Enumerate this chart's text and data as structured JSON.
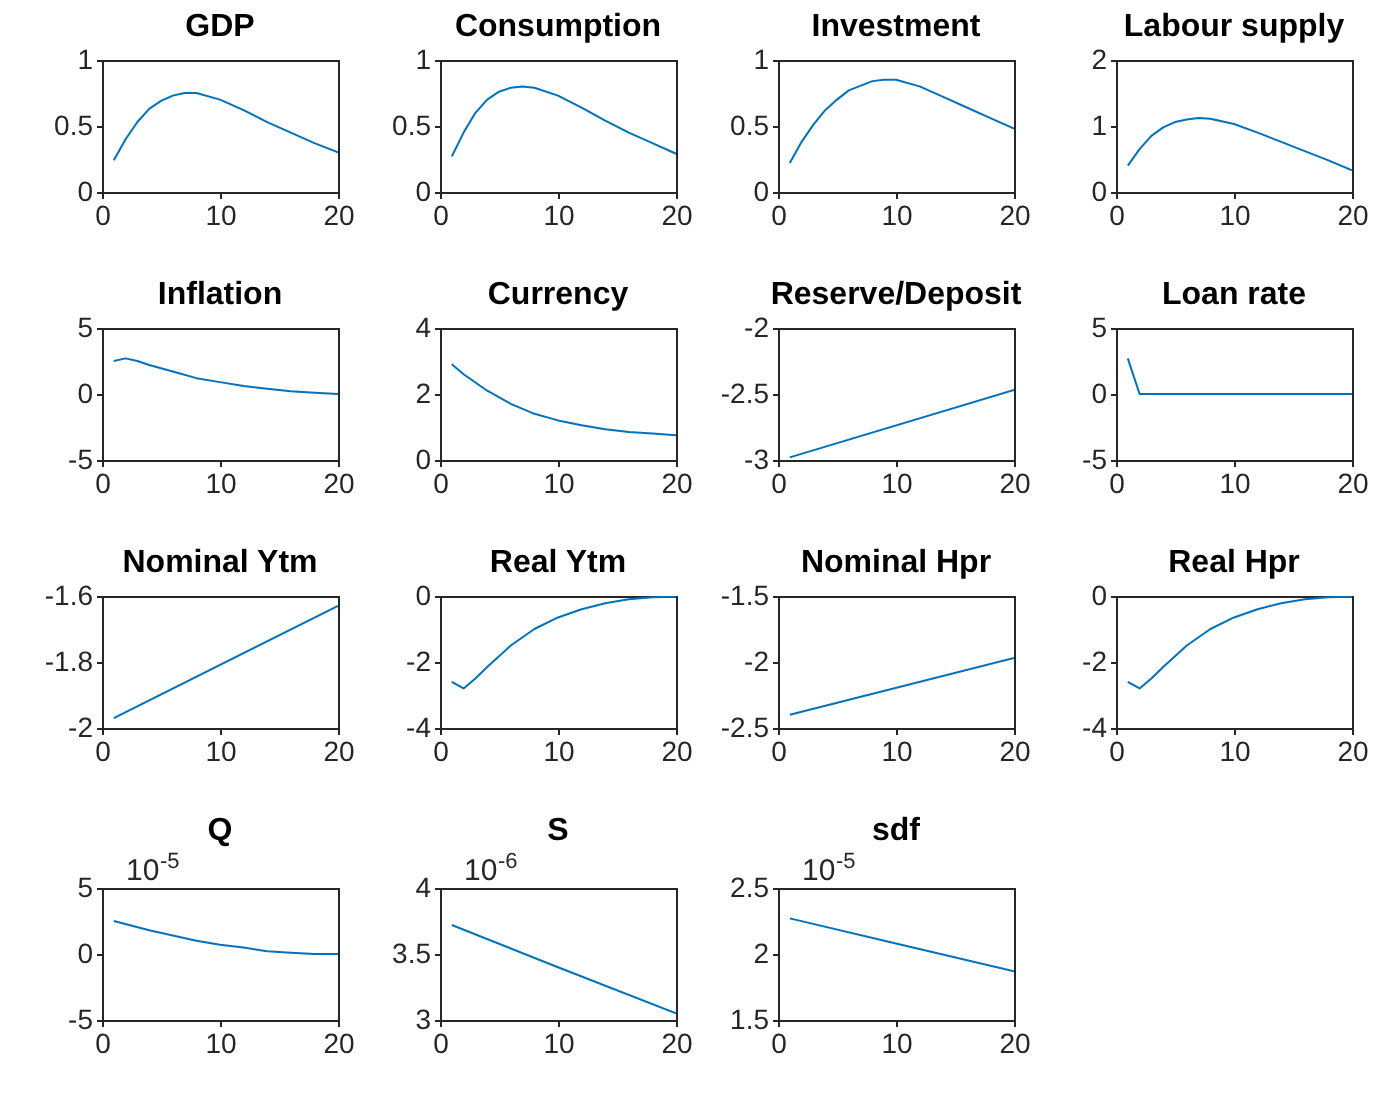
{
  "chart_data": [
    {
      "type": "line",
      "title": "GDP",
      "x": [
        1,
        2,
        3,
        4,
        5,
        6,
        7,
        8,
        10,
        12,
        14,
        16,
        18,
        20
      ],
      "values": [
        0.24,
        0.4,
        0.53,
        0.63,
        0.69,
        0.73,
        0.75,
        0.75,
        0.7,
        0.62,
        0.53,
        0.45,
        0.37,
        0.3
      ],
      "color": "#0072bd",
      "xlim": [
        0,
        20
      ],
      "xticks": [
        0,
        10,
        20
      ],
      "ylim": [
        0,
        1
      ],
      "yticks": [
        0,
        0.5,
        1
      ],
      "grid": false
    },
    {
      "type": "line",
      "title": "Consumption",
      "x": [
        1,
        2,
        3,
        4,
        5,
        6,
        7,
        8,
        10,
        12,
        14,
        16,
        18,
        20
      ],
      "values": [
        0.27,
        0.45,
        0.6,
        0.7,
        0.76,
        0.79,
        0.8,
        0.79,
        0.73,
        0.64,
        0.54,
        0.45,
        0.37,
        0.29
      ],
      "color": "#0072bd",
      "xlim": [
        0,
        20
      ],
      "xticks": [
        0,
        10,
        20
      ],
      "ylim": [
        0,
        1
      ],
      "yticks": [
        0,
        0.5,
        1
      ],
      "grid": false
    },
    {
      "type": "line",
      "title": "Investment",
      "x": [
        1,
        2,
        3,
        4,
        5,
        6,
        8,
        9,
        10,
        12,
        14,
        16,
        18,
        20
      ],
      "values": [
        0.22,
        0.38,
        0.51,
        0.62,
        0.7,
        0.77,
        0.84,
        0.85,
        0.85,
        0.8,
        0.72,
        0.64,
        0.56,
        0.48
      ],
      "color": "#0072bd",
      "xlim": [
        0,
        20
      ],
      "xticks": [
        0,
        10,
        20
      ],
      "ylim": [
        0,
        1
      ],
      "yticks": [
        0,
        0.5,
        1
      ],
      "grid": false
    },
    {
      "type": "line",
      "title": "Labour supply",
      "x": [
        1,
        2,
        3,
        4,
        5,
        6,
        7,
        8,
        10,
        12,
        14,
        16,
        18,
        20
      ],
      "values": [
        0.4,
        0.65,
        0.85,
        0.98,
        1.06,
        1.1,
        1.12,
        1.11,
        1.03,
        0.9,
        0.76,
        0.62,
        0.48,
        0.33
      ],
      "color": "#0072bd",
      "xlim": [
        0,
        20
      ],
      "xticks": [
        0,
        10,
        20
      ],
      "ylim": [
        0,
        2
      ],
      "yticks": [
        0,
        1,
        2
      ],
      "grid": false
    },
    {
      "type": "line",
      "title": "Inflation",
      "x": [
        1,
        2,
        3,
        4,
        6,
        8,
        10,
        12,
        14,
        16,
        18,
        20
      ],
      "values": [
        2.5,
        2.7,
        2.5,
        2.2,
        1.7,
        1.2,
        0.9,
        0.6,
        0.4,
        0.2,
        0.1,
        0
      ],
      "color": "#0072bd",
      "xlim": [
        0,
        20
      ],
      "xticks": [
        0,
        10,
        20
      ],
      "ylim": [
        -5,
        5
      ],
      "yticks": [
        -5,
        0,
        5
      ],
      "grid": false
    },
    {
      "type": "line",
      "title": "Currency",
      "x": [
        1,
        2,
        3,
        4,
        6,
        8,
        10,
        12,
        14,
        16,
        18,
        20
      ],
      "values": [
        2.9,
        2.6,
        2.35,
        2.1,
        1.7,
        1.4,
        1.2,
        1.05,
        0.93,
        0.85,
        0.8,
        0.75
      ],
      "color": "#0072bd",
      "xlim": [
        0,
        20
      ],
      "xticks": [
        0,
        10,
        20
      ],
      "ylim": [
        0,
        4
      ],
      "yticks": [
        0,
        2,
        4
      ],
      "grid": false
    },
    {
      "type": "line",
      "title": "Reserve/Deposit",
      "x": [
        1,
        20
      ],
      "values": [
        -2.98,
        -2.47
      ],
      "color": "#0072bd",
      "xlim": [
        0,
        20
      ],
      "xticks": [
        0,
        10,
        20
      ],
      "ylim": [
        -3,
        -2
      ],
      "yticks": [
        -3,
        -2.5,
        -2
      ],
      "grid": false
    },
    {
      "type": "line",
      "title": "Loan rate",
      "x": [
        1,
        2,
        20
      ],
      "values": [
        2.7,
        0,
        0
      ],
      "color": "#0072bd",
      "xlim": [
        0,
        20
      ],
      "xticks": [
        0,
        10,
        20
      ],
      "ylim": [
        -5,
        5
      ],
      "yticks": [
        -5,
        0,
        5
      ],
      "grid": false
    },
    {
      "type": "line",
      "title": "Nominal Ytm",
      "x": [
        1,
        20
      ],
      "values": [
        -1.97,
        -1.63
      ],
      "color": "#0072bd",
      "xlim": [
        0,
        20
      ],
      "xticks": [
        0,
        10,
        20
      ],
      "ylim": [
        -2,
        -1.6
      ],
      "yticks": [
        -2,
        -1.8,
        -1.6
      ],
      "grid": false
    },
    {
      "type": "line",
      "title": "Real Ytm",
      "x": [
        1,
        2,
        3,
        4,
        6,
        8,
        10,
        12,
        14,
        16,
        18,
        20
      ],
      "values": [
        -2.6,
        -2.8,
        -2.5,
        -2.15,
        -1.5,
        -1.0,
        -0.65,
        -0.4,
        -0.22,
        -0.1,
        -0.04,
        -0.02
      ],
      "color": "#0072bd",
      "xlim": [
        0,
        20
      ],
      "xticks": [
        0,
        10,
        20
      ],
      "ylim": [
        -4,
        0
      ],
      "yticks": [
        -4,
        -2,
        0
      ],
      "grid": false
    },
    {
      "type": "line",
      "title": "Nominal Hpr",
      "x": [
        1,
        20
      ],
      "values": [
        -2.4,
        -1.97
      ],
      "color": "#0072bd",
      "xlim": [
        0,
        20
      ],
      "xticks": [
        0,
        10,
        20
      ],
      "ylim": [
        -2.5,
        -1.5
      ],
      "yticks": [
        -2.5,
        -2,
        -1.5
      ],
      "grid": false
    },
    {
      "type": "line",
      "title": "Real Hpr",
      "x": [
        1,
        2,
        3,
        4,
        6,
        8,
        10,
        12,
        14,
        16,
        18,
        20
      ],
      "values": [
        -2.6,
        -2.8,
        -2.5,
        -2.15,
        -1.5,
        -1.0,
        -0.65,
        -0.4,
        -0.22,
        -0.1,
        -0.04,
        -0.02
      ],
      "color": "#0072bd",
      "xlim": [
        0,
        20
      ],
      "xticks": [
        0,
        10,
        20
      ],
      "ylim": [
        -4,
        0
      ],
      "yticks": [
        -4,
        -2,
        0
      ],
      "grid": false
    },
    {
      "type": "line",
      "title": "Q",
      "x": [
        1,
        4,
        6,
        8,
        10,
        12,
        14,
        16,
        18,
        20
      ],
      "values": [
        2.5,
        1.8,
        1.4,
        1.0,
        0.7,
        0.5,
        0.2,
        0.1,
        0,
        0
      ],
      "color": "#0072bd",
      "xlim": [
        0,
        20
      ],
      "xticks": [
        0,
        10,
        20
      ],
      "ylim": [
        -5,
        5
      ],
      "yticks": [
        -5,
        0,
        5
      ],
      "grid": false,
      "annotations": [
        "10$^{-5}$"
      ]
    },
    {
      "type": "line",
      "title": "S",
      "x": [
        1,
        10,
        20
      ],
      "values": [
        3.72,
        3.4,
        3.05
      ],
      "color": "#0072bd",
      "xlim": [
        0,
        20
      ],
      "xticks": [
        0,
        10,
        20
      ],
      "ylim": [
        3,
        4
      ],
      "yticks": [
        3,
        3.5,
        4
      ],
      "grid": false,
      "annotations": [
        "10$^{-6}$"
      ]
    },
    {
      "type": "line",
      "title": "sdf",
      "x": [
        1,
        10,
        20
      ],
      "values": [
        2.27,
        2.08,
        1.87
      ],
      "color": "#0072bd",
      "xlim": [
        0,
        20
      ],
      "xticks": [
        0,
        10,
        20
      ],
      "ylim": [
        1.5,
        2.5
      ],
      "yticks": [
        1.5,
        2,
        2.5
      ],
      "grid": false,
      "annotations": [
        "10$^{-5}$"
      ]
    }
  ]
}
